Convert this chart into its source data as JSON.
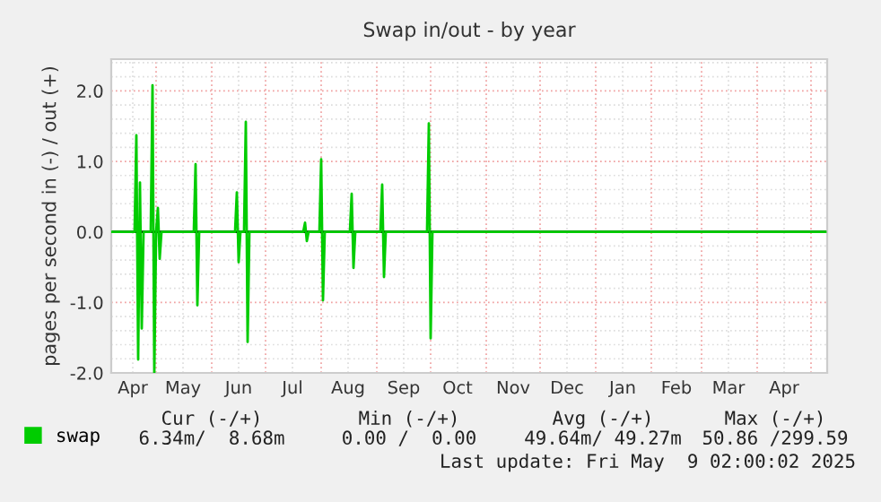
{
  "chart_data": {
    "type": "line",
    "title": "Swap in/out - by year",
    "ylabel": "pages per second in (-) / out (+)",
    "xlim": [
      "2024-04-06",
      "2025-05-10"
    ],
    "xticks": [
      {
        "value": "2024-04-18",
        "label": "Apr"
      },
      {
        "value": "2024-05-01",
        "label": null
      },
      {
        "value": "2024-05-16",
        "label": "May"
      },
      {
        "value": "2024-06-01",
        "label": null
      },
      {
        "value": "2024-06-16",
        "label": "Jun"
      },
      {
        "value": "2024-07-01",
        "label": null
      },
      {
        "value": "2024-07-16",
        "label": "Jul"
      },
      {
        "value": "2024-08-01",
        "label": null
      },
      {
        "value": "2024-08-16",
        "label": "Aug"
      },
      {
        "value": "2024-09-01",
        "label": null
      },
      {
        "value": "2024-09-16",
        "label": "Sep"
      },
      {
        "value": "2024-10-01",
        "label": null
      },
      {
        "value": "2024-10-16",
        "label": "Oct"
      },
      {
        "value": "2024-11-01",
        "label": null
      },
      {
        "value": "2024-11-16",
        "label": "Nov"
      },
      {
        "value": "2024-12-01",
        "label": null
      },
      {
        "value": "2024-12-16",
        "label": "Dec"
      },
      {
        "value": "2025-01-01",
        "label": null
      },
      {
        "value": "2025-01-16",
        "label": "Jan"
      },
      {
        "value": "2025-02-01",
        "label": null
      },
      {
        "value": "2025-02-15",
        "label": "Feb"
      },
      {
        "value": "2025-03-01",
        "label": null
      },
      {
        "value": "2025-03-16",
        "label": "Mar"
      },
      {
        "value": "2025-04-01",
        "label": null
      },
      {
        "value": "2025-04-16",
        "label": "Apr"
      },
      {
        "value": "2025-05-01",
        "label": null
      }
    ],
    "ylim": [
      -2.0,
      2.45
    ],
    "yticks": [
      {
        "value": -2.0,
        "label": "-2.0"
      },
      {
        "value": -1.8,
        "label": null
      },
      {
        "value": -1.6,
        "label": null
      },
      {
        "value": -1.4,
        "label": null
      },
      {
        "value": -1.2,
        "label": null
      },
      {
        "value": -1.0,
        "label": "-1.0"
      },
      {
        "value": -0.8,
        "label": null
      },
      {
        "value": -0.6,
        "label": null
      },
      {
        "value": -0.4,
        "label": null
      },
      {
        "value": -0.2,
        "label": null
      },
      {
        "value": 0.0,
        "label": "0.0"
      },
      {
        "value": 0.2,
        "label": null
      },
      {
        "value": 0.4,
        "label": null
      },
      {
        "value": 0.6,
        "label": null
      },
      {
        "value": 0.8,
        "label": null
      },
      {
        "value": 1.0,
        "label": "1.0"
      },
      {
        "value": 1.2,
        "label": null
      },
      {
        "value": 1.4,
        "label": null
      },
      {
        "value": 1.6,
        "label": null
      },
      {
        "value": 1.8,
        "label": null
      },
      {
        "value": 2.0,
        "label": "2.0"
      },
      {
        "value": 2.2,
        "label": null
      },
      {
        "value": 2.4,
        "label": null
      }
    ],
    "grid": true,
    "legend": "bottom",
    "ref_lines": [
      {
        "axis": "y",
        "value": 0,
        "label": null,
        "color": "#000000"
      }
    ],
    "x": [
      "2024-04-06",
      "2024-04-19",
      "2024-04-20",
      "2024-04-21",
      "2024-04-22",
      "2024-04-23",
      "2024-04-24",
      "2024-04-28",
      "2024-04-29",
      "2024-04-30",
      "2024-05-01",
      "2024-05-02",
      "2024-05-03",
      "2024-05-04",
      "2024-05-22",
      "2024-05-23",
      "2024-05-24",
      "2024-05-25",
      "2024-06-14",
      "2024-06-15",
      "2024-06-16",
      "2024-06-17",
      "2024-06-19",
      "2024-06-20",
      "2024-06-21",
      "2024-06-22",
      "2024-07-22",
      "2024-07-23",
      "2024-07-24",
      "2024-07-25",
      "2024-07-31",
      "2024-08-01",
      "2024-08-02",
      "2024-08-03",
      "2024-08-17",
      "2024-08-18",
      "2024-08-19",
      "2024-08-20",
      "2024-09-03",
      "2024-09-04",
      "2024-09-05",
      "2024-09-06",
      "2024-09-29",
      "2024-09-30",
      "2024-10-01",
      "2024-10-02",
      "2025-05-09"
    ],
    "series": [
      {
        "name": "swap",
        "color": "#00cc00",
        "values": [
          0,
          0,
          1.37,
          -1.81,
          0.7,
          -1.37,
          0,
          0,
          2.08,
          -2.0,
          0,
          0.34,
          -0.38,
          0,
          0,
          0.96,
          -1.04,
          0,
          0,
          0.56,
          -0.43,
          0,
          0,
          1.56,
          -1.56,
          0,
          0,
          0.13,
          -0.13,
          0,
          0,
          1.03,
          -0.97,
          0,
          0,
          0.54,
          -0.51,
          0,
          0,
          0.67,
          -0.64,
          0,
          0,
          1.54,
          -1.51,
          0,
          0
        ]
      }
    ],
    "annotations": [
      "Cur (-/+)",
      "Min (-/+)",
      "Avg (-/+)",
      "Max (-/+)",
      "6.34m/  8.68m",
      "0.00 /  0.00",
      "49.64m/ 49.27m",
      "50.86 /299.59",
      "Last update: Fri May  9 02:00:02 2025"
    ]
  }
}
